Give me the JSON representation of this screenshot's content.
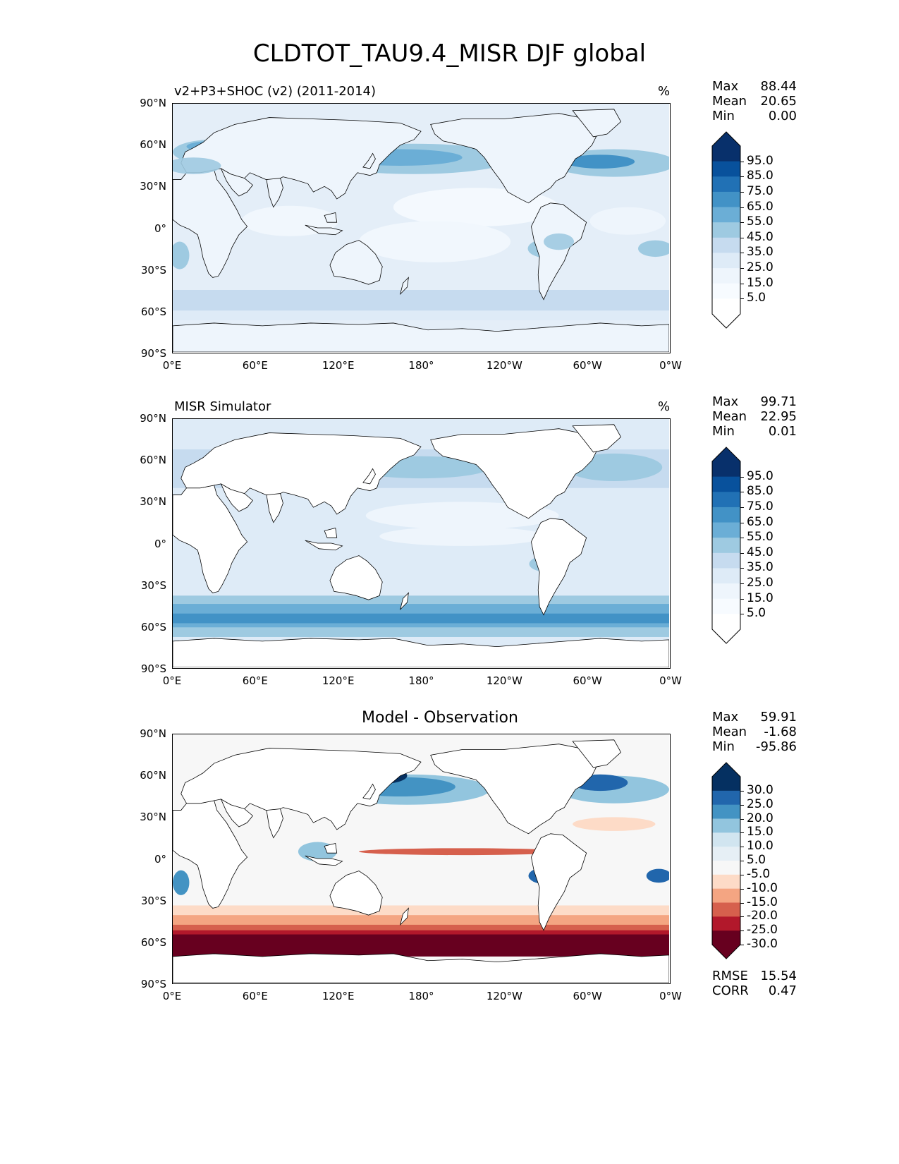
{
  "title": "CLDTOT_TAU9.4_MISR DJF global",
  "axes": {
    "yticks": [
      "90°N",
      "60°N",
      "30°N",
      "0°",
      "30°S",
      "60°S",
      "90°S"
    ],
    "xticks": [
      "0°E",
      "60°E",
      "120°E",
      "180°",
      "120°W",
      "60°W",
      "0°W"
    ]
  },
  "panels": [
    {
      "title": "v2+P3+SHOC (v2) (2011-2014)",
      "units": "%",
      "stats": {
        "max_label": "Max",
        "max": "88.44",
        "mean_label": "Mean",
        "mean": "20.65",
        "min_label": "Min",
        "min": "0.00"
      },
      "colorbar": {
        "colormap": "Blues",
        "labels": [
          "95.0",
          "85.0",
          "75.0",
          "65.0",
          "55.0",
          "45.0",
          "35.0",
          "25.0",
          "15.0",
          "5.0"
        ],
        "colors": [
          "#08306b",
          "#08519c",
          "#2171b5",
          "#4292c6",
          "#6baed6",
          "#9ecae1",
          "#c6dbef",
          "#deebf7",
          "#eef5fc",
          "#f7fbff",
          "#ffffff"
        ]
      }
    },
    {
      "title": "MISR Simulator",
      "units": "%",
      "stats": {
        "max_label": "Max",
        "max": "99.71",
        "mean_label": "Mean",
        "mean": "22.95",
        "min_label": "Min",
        "min": "0.01"
      },
      "colorbar": {
        "colormap": "Blues",
        "labels": [
          "95.0",
          "85.0",
          "75.0",
          "65.0",
          "55.0",
          "45.0",
          "35.0",
          "25.0",
          "15.0",
          "5.0"
        ],
        "colors": [
          "#08306b",
          "#08519c",
          "#2171b5",
          "#4292c6",
          "#6baed6",
          "#9ecae1",
          "#c6dbef",
          "#deebf7",
          "#eef5fc",
          "#f7fbff",
          "#ffffff"
        ]
      }
    },
    {
      "title": "Model - Observation",
      "units": "",
      "stats": {
        "max_label": "Max",
        "max": "59.91",
        "mean_label": "Mean",
        "mean": "-1.68",
        "min_label": "Min",
        "min": "-95.86"
      },
      "extra_stats": {
        "rmse_label": "RMSE",
        "rmse": "15.54",
        "corr_label": "CORR",
        "corr": "0.47"
      },
      "colorbar": {
        "colormap": "RdBu",
        "labels": [
          "30.0",
          "25.0",
          "20.0",
          "15.0",
          "10.0",
          "5.0",
          "-5.0",
          "-10.0",
          "-15.0",
          "-20.0",
          "-25.0",
          "-30.0"
        ],
        "colors": [
          "#053061",
          "#2166ac",
          "#4393c3",
          "#92c5de",
          "#d1e5f0",
          "#e6eff5",
          "#f7f7f7",
          "#fddbc7",
          "#f4a582",
          "#d6604d",
          "#b2182b",
          "#67001f"
        ]
      }
    }
  ]
}
